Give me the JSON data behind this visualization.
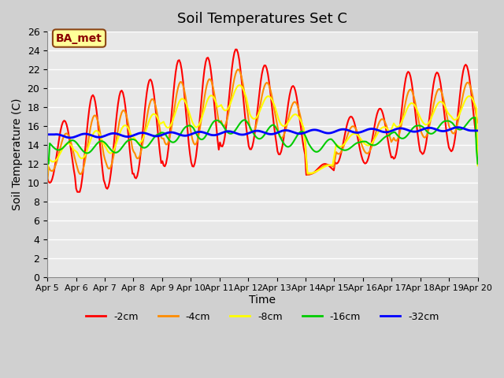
{
  "title": "Soil Temperatures Set C",
  "xlabel": "Time",
  "ylabel": "Soil Temperature (C)",
  "ylim": [
    0,
    26
  ],
  "yticks": [
    0,
    2,
    4,
    6,
    8,
    10,
    12,
    14,
    16,
    18,
    20,
    22,
    24,
    26
  ],
  "xtick_labels": [
    "Apr 5",
    "Apr 6",
    "Apr 7",
    "Apr 8",
    "Apr 9",
    "Apr 10",
    "Apr 11",
    "Apr 12",
    "Apr 13",
    "Apr 14",
    "Apr 15",
    "Apr 16",
    "Apr 17",
    "Apr 18",
    "Apr 19",
    "Apr 20"
  ],
  "bg_color": "#e8e8e8",
  "annotation_text": "BA_met",
  "annotation_bg": "#ffff99",
  "annotation_border": "#8B4513",
  "annotation_text_color": "#8B0000",
  "series_colors": [
    "#ff0000",
    "#ff8c00",
    "#ffff00",
    "#00cc00",
    "#0000ff"
  ],
  "series_labels": [
    "-2cm",
    "-4cm",
    "-8cm",
    "-16cm",
    "-32cm"
  ],
  "series_linewidths": [
    1.5,
    1.5,
    1.5,
    1.5,
    2.0
  ]
}
